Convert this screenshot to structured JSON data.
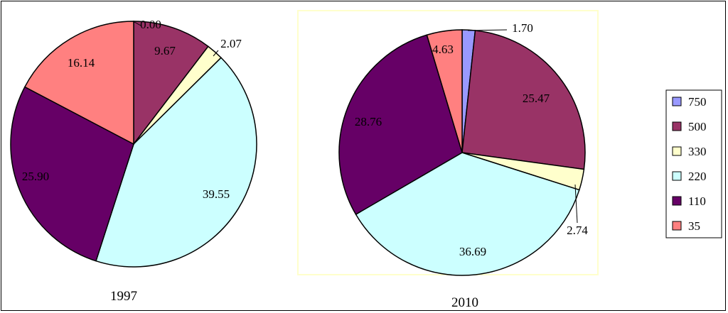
{
  "colors": {
    "750": "#9999ff",
    "500": "#993366",
    "330": "#ffffcc",
    "220": "#ccffff",
    "110": "#660066",
    "35": "#ff8080"
  },
  "chart_data": {
    "type": "pie",
    "legend": {
      "position": "right",
      "entries": [
        "750",
        "500",
        "330",
        "220",
        "110",
        "35"
      ]
    },
    "pies": [
      {
        "caption": "1997",
        "slices": [
          {
            "category": "750",
            "value": 0.0,
            "label": "0.00"
          },
          {
            "category": "500",
            "value": 9.67,
            "label": "9.67"
          },
          {
            "category": "330",
            "value": 2.07,
            "label": "2.07"
          },
          {
            "category": "220",
            "value": 39.55,
            "label": "39.55"
          },
          {
            "category": "110",
            "value": 25.9,
            "label": "25.90"
          },
          {
            "category": "35",
            "value": 16.14,
            "label": "16.14"
          }
        ]
      },
      {
        "caption": "2010",
        "slices": [
          {
            "category": "750",
            "value": 1.7,
            "label": "1.70"
          },
          {
            "category": "500",
            "value": 25.47,
            "label": "25.47"
          },
          {
            "category": "330",
            "value": 2.74,
            "label": "2.74"
          },
          {
            "category": "220",
            "value": 36.69,
            "label": "36.69"
          },
          {
            "category": "110",
            "value": 28.76,
            "label": "28.76"
          },
          {
            "category": "35",
            "value": 4.63,
            "label": "4.63"
          }
        ]
      }
    ]
  }
}
